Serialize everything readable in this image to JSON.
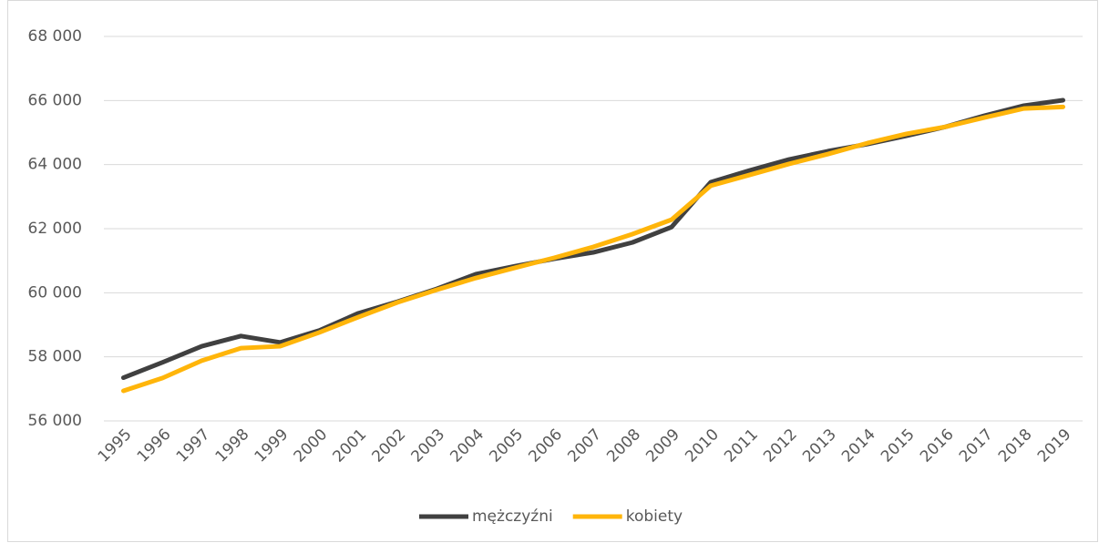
{
  "chart_data": {
    "type": "line",
    "categories": [
      "1995",
      "1996",
      "1997",
      "1998",
      "1999",
      "2000",
      "2001",
      "2002",
      "2003",
      "2004",
      "2005",
      "2006",
      "2007",
      "2008",
      "2009",
      "2010",
      "2011",
      "2012",
      "2013",
      "2014",
      "2015",
      "2016",
      "2017",
      "2018",
      "2019"
    ],
    "series": [
      {
        "name": "mężczyźni",
        "color": "#404040",
        "values": [
          57350,
          57830,
          58330,
          58650,
          58450,
          58820,
          59360,
          59720,
          60120,
          60580,
          60830,
          61060,
          61260,
          61570,
          62050,
          63450,
          63820,
          64160,
          64420,
          64640,
          64900,
          65180,
          65530,
          65840,
          66010
        ]
      },
      {
        "name": "kobiety",
        "color": "#ffb50a",
        "values": [
          56940,
          57340,
          57880,
          58270,
          58330,
          58760,
          59240,
          59700,
          60090,
          60460,
          60780,
          61090,
          61430,
          61830,
          62280,
          63340,
          63680,
          64020,
          64330,
          64670,
          64960,
          65180,
          65470,
          65750,
          65800
        ]
      }
    ],
    "ylim": [
      56000,
      68000
    ],
    "yticks": [
      {
        "value": 56000,
        "label": "56 000"
      },
      {
        "value": 58000,
        "label": "58 000"
      },
      {
        "value": 60000,
        "label": "60 000"
      },
      {
        "value": 62000,
        "label": "62 000"
      },
      {
        "value": 64000,
        "label": "64 000"
      },
      {
        "value": 66000,
        "label": "66 000"
      },
      {
        "value": 68000,
        "label": "68 000"
      }
    ],
    "grid": true,
    "legend": "bottom"
  }
}
